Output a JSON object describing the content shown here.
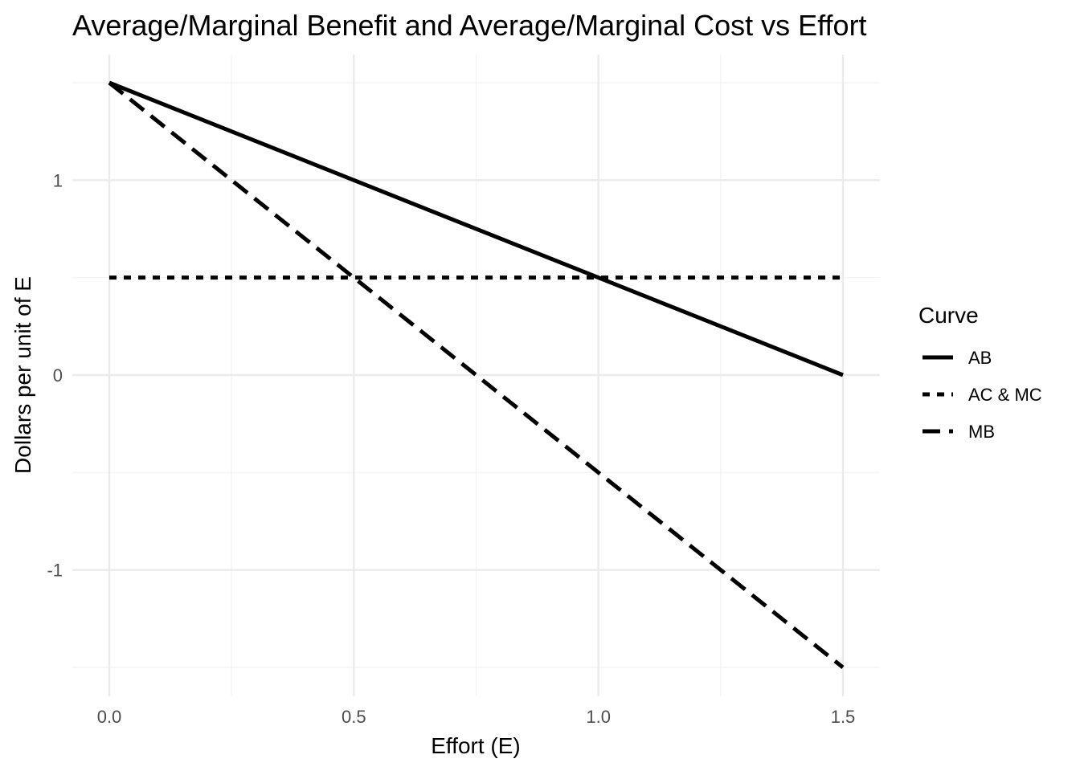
{
  "chart_data": {
    "type": "line",
    "title": "Average/Marginal Benefit and Average/Marginal Cost vs Effort",
    "xlabel": "Effort (E)",
    "ylabel": "Dollars per unit of E",
    "xlim": [
      0,
      1.5
    ],
    "ylim": [
      -1.5,
      1.5
    ],
    "x_ticks": [
      0.0,
      0.5,
      1.0,
      1.5
    ],
    "x_tick_labels": [
      "0.0",
      "0.5",
      "1.0",
      "1.5"
    ],
    "y_ticks": [
      -1,
      0,
      1
    ],
    "y_tick_labels": [
      "-1",
      "0",
      "1"
    ],
    "grid": true,
    "legend": {
      "title": "Curve",
      "position": "right"
    },
    "series": [
      {
        "name": "AB",
        "linetype": "solid",
        "x": [
          0,
          1.5
        ],
        "y": [
          1.5,
          0
        ]
      },
      {
        "name": "AC & MC",
        "linetype": "dotted",
        "x": [
          0,
          1.5
        ],
        "y": [
          0.5,
          0.5
        ]
      },
      {
        "name": "MB",
        "linetype": "dashed",
        "x": [
          0,
          1.5
        ],
        "y": [
          1.5,
          -1.5
        ]
      }
    ]
  }
}
